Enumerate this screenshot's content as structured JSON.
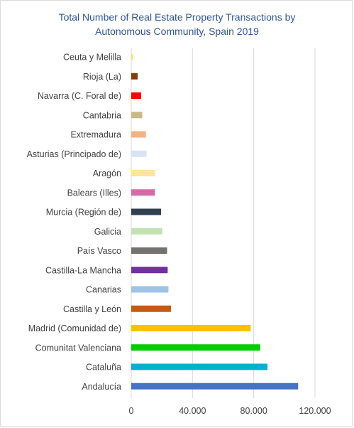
{
  "chart_data": {
    "type": "bar",
    "orientation": "horizontal",
    "title": "Total Number of Real Estate Property Transactions by Autonomous Community, Spain 2019",
    "title_lines": [
      "Total Number of Real Estate Property Transactions by",
      "Autonomous Community, Spain 2019"
    ],
    "xlabel": "",
    "ylabel": "",
    "xlim": [
      0,
      120000
    ],
    "x_ticks": [
      0,
      40000,
      80000,
      120000
    ],
    "x_tick_labels": [
      "0",
      "40.000",
      "80.000",
      "120.000"
    ],
    "grid": true,
    "legend": false,
    "categories": [
      "Ceuta y Melilla",
      "Rioja (La)",
      "Navarra (C. Foral de)",
      "Cantabria",
      "Extremadura",
      "Asturias (Principado de)",
      "Aragón",
      "Balears (Illes)",
      "Murcia (Región de)",
      "Galicia",
      "País Vasco",
      "Castilla-La Mancha",
      "Canarias",
      "Castilla y León",
      "Madrid (Comunidad de)",
      "Comunitat Valenciana",
      "Cataluña",
      "Andalucía"
    ],
    "values": [
      1000,
      4200,
      6500,
      7200,
      9600,
      10000,
      15500,
      15500,
      19500,
      20300,
      23400,
      23800,
      24300,
      26000,
      78000,
      84200,
      89000,
      109000
    ],
    "colors": [
      "#ffe066",
      "#843c0c",
      "#ff0000",
      "#c9b98a",
      "#f4b183",
      "#dae3f3",
      "#ffe699",
      "#d56aa8",
      "#323f4f",
      "#c5e0b4",
      "#767171",
      "#7030a0",
      "#9dc3e6",
      "#c55a11",
      "#ffc000",
      "#00cc00",
      "#00b0d0",
      "#4472c4"
    ]
  }
}
